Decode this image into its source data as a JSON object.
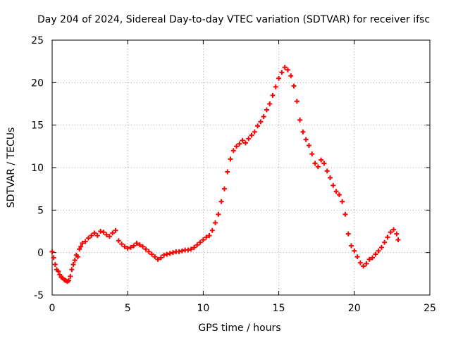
{
  "chart_data": {
    "type": "scatter",
    "title": "Day 204 of 2024, Sidereal Day-to-day VTEC variation (SDTVAR) for receiver ifsc",
    "xlabel": "GPS time / hours",
    "ylabel": "SDTVAR / TECUs",
    "xlim": [
      0,
      25
    ],
    "ylim": [
      -5,
      25
    ],
    "xticks": [
      0,
      5,
      10,
      15,
      20,
      25
    ],
    "yticks": [
      -5,
      0,
      5,
      10,
      15,
      20,
      25
    ],
    "xtick_labels": [
      "0",
      "5",
      "10",
      "15",
      "20",
      "25"
    ],
    "ytick_labels": [
      "-5",
      "0",
      "5",
      "10",
      "15",
      "20",
      "25"
    ],
    "grid": true,
    "marker": "plus",
    "color": "#ff0000",
    "series": [
      {
        "name": "SDTVAR",
        "points": [
          [
            0.0,
            0.1
          ],
          [
            0.1,
            -0.6
          ],
          [
            0.2,
            -1.4
          ],
          [
            0.3,
            -2.0
          ],
          [
            0.4,
            -2.2
          ],
          [
            0.5,
            -2.6
          ],
          [
            0.6,
            -2.9
          ],
          [
            0.7,
            -3.0
          ],
          [
            0.8,
            -3.2
          ],
          [
            0.9,
            -3.3
          ],
          [
            1.0,
            -3.4
          ],
          [
            1.1,
            -3.3
          ],
          [
            1.2,
            -2.8
          ],
          [
            1.3,
            -2.0
          ],
          [
            1.4,
            -1.4
          ],
          [
            1.5,
            -0.9
          ],
          [
            1.6,
            -0.3
          ],
          [
            1.7,
            -0.5
          ],
          [
            1.8,
            0.4
          ],
          [
            1.9,
            0.7
          ],
          [
            2.0,
            1.1
          ],
          [
            2.2,
            1.3
          ],
          [
            2.4,
            1.7
          ],
          [
            2.6,
            2.0
          ],
          [
            2.8,
            2.3
          ],
          [
            3.0,
            2.0
          ],
          [
            3.2,
            2.5
          ],
          [
            3.4,
            2.4
          ],
          [
            3.6,
            2.1
          ],
          [
            3.8,
            1.9
          ],
          [
            4.0,
            2.3
          ],
          [
            4.2,
            2.6
          ],
          [
            4.4,
            1.4
          ],
          [
            4.6,
            1.0
          ],
          [
            4.8,
            0.7
          ],
          [
            5.0,
            0.5
          ],
          [
            5.2,
            0.6
          ],
          [
            5.4,
            0.8
          ],
          [
            5.6,
            1.1
          ],
          [
            5.8,
            0.9
          ],
          [
            6.0,
            0.7
          ],
          [
            6.2,
            0.4
          ],
          [
            6.4,
            0.1
          ],
          [
            6.6,
            -0.2
          ],
          [
            6.8,
            -0.5
          ],
          [
            7.0,
            -0.8
          ],
          [
            7.2,
            -0.6
          ],
          [
            7.4,
            -0.3
          ],
          [
            7.6,
            -0.2
          ],
          [
            7.8,
            -0.1
          ],
          [
            8.0,
            0.0
          ],
          [
            8.2,
            0.1
          ],
          [
            8.4,
            0.1
          ],
          [
            8.6,
            0.2
          ],
          [
            8.8,
            0.3
          ],
          [
            9.0,
            0.3
          ],
          [
            9.2,
            0.4
          ],
          [
            9.4,
            0.6
          ],
          [
            9.6,
            0.9
          ],
          [
            9.8,
            1.2
          ],
          [
            10.0,
            1.5
          ],
          [
            10.2,
            1.8
          ],
          [
            10.4,
            2.0
          ],
          [
            10.6,
            2.6
          ],
          [
            10.8,
            3.5
          ],
          [
            11.0,
            4.5
          ],
          [
            11.2,
            6.0
          ],
          [
            11.4,
            7.5
          ],
          [
            11.6,
            9.5
          ],
          [
            11.8,
            11.0
          ],
          [
            12.0,
            12.0
          ],
          [
            12.2,
            12.5
          ],
          [
            12.4,
            12.8
          ],
          [
            12.6,
            13.2
          ],
          [
            12.8,
            12.9
          ],
          [
            13.0,
            13.4
          ],
          [
            13.2,
            13.8
          ],
          [
            13.4,
            14.2
          ],
          [
            13.6,
            14.9
          ],
          [
            13.8,
            15.4
          ],
          [
            14.0,
            16.0
          ],
          [
            14.2,
            16.8
          ],
          [
            14.4,
            17.5
          ],
          [
            14.6,
            18.5
          ],
          [
            14.8,
            19.5
          ],
          [
            15.0,
            20.5
          ],
          [
            15.2,
            21.2
          ],
          [
            15.4,
            21.8
          ],
          [
            15.6,
            21.5
          ],
          [
            15.8,
            20.8
          ],
          [
            16.0,
            19.6
          ],
          [
            16.2,
            17.8
          ],
          [
            16.4,
            15.6
          ],
          [
            16.6,
            14.2
          ],
          [
            16.8,
            13.3
          ],
          [
            17.0,
            12.6
          ],
          [
            17.2,
            11.6
          ],
          [
            17.4,
            10.5
          ],
          [
            17.6,
            10.1
          ],
          [
            17.8,
            10.9
          ],
          [
            18.0,
            10.5
          ],
          [
            18.2,
            9.6
          ],
          [
            18.4,
            8.8
          ],
          [
            18.6,
            7.9
          ],
          [
            18.8,
            7.2
          ],
          [
            19.0,
            6.8
          ],
          [
            19.2,
            6.0
          ],
          [
            19.4,
            4.5
          ],
          [
            19.6,
            2.2
          ],
          [
            19.8,
            0.8
          ],
          [
            20.0,
            0.2
          ],
          [
            20.2,
            -0.5
          ],
          [
            20.4,
            -1.2
          ],
          [
            20.6,
            -1.6
          ],
          [
            20.8,
            -1.3
          ],
          [
            21.0,
            -0.8
          ],
          [
            21.2,
            -0.6
          ],
          [
            21.4,
            -0.2
          ],
          [
            21.6,
            0.2
          ],
          [
            21.8,
            0.6
          ],
          [
            22.0,
            1.2
          ],
          [
            22.2,
            1.8
          ],
          [
            22.4,
            2.4
          ],
          [
            22.6,
            2.7
          ],
          [
            22.8,
            2.2
          ],
          [
            22.9,
            1.5
          ]
        ]
      }
    ]
  }
}
